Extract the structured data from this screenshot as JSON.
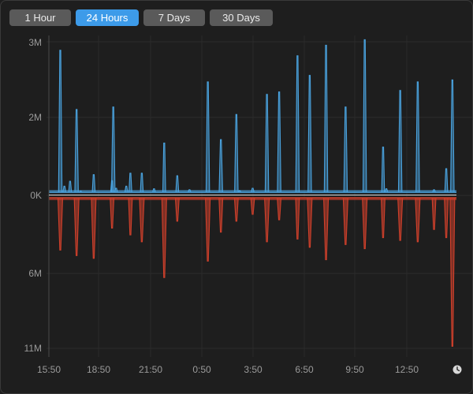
{
  "tabs": [
    {
      "label": "1 Hour",
      "active": false
    },
    {
      "label": "24 Hours",
      "active": true
    },
    {
      "label": "7 Days",
      "active": false
    },
    {
      "label": "30 Days",
      "active": false
    }
  ],
  "icons": {
    "clock": "clock-icon"
  },
  "colors": {
    "upload": "#4aa3df",
    "download": "#d0402b",
    "active_tab": "#3d9be9"
  },
  "chart_data": {
    "type": "area",
    "title": "",
    "y_ticks_top": [
      "3M",
      "2M",
      "0K"
    ],
    "y_ticks_bottom": [
      "6M",
      "11M"
    ],
    "x_ticks": [
      "15:50",
      "18:50",
      "21:50",
      "0:50",
      "3:50",
      "6:50",
      "9:50",
      "12:50"
    ],
    "ylim_top": [
      0,
      3.0
    ],
    "ylim_bottom": [
      0,
      11.0
    ],
    "grid": true,
    "series": [
      {
        "direction": "up",
        "spikes": [
          {
            "t": 0.028,
            "v": 2.83
          },
          {
            "t": 0.038,
            "v": 0.12
          },
          {
            "t": 0.052,
            "v": 0.22
          },
          {
            "t": 0.068,
            "v": 1.65
          },
          {
            "t": 0.078,
            "v": 0.02
          },
          {
            "t": 0.11,
            "v": 0.35
          },
          {
            "t": 0.155,
            "v": 0.23
          },
          {
            "t": 0.158,
            "v": 1.7
          },
          {
            "t": 0.165,
            "v": 0.08
          },
          {
            "t": 0.19,
            "v": 0.12
          },
          {
            "t": 0.2,
            "v": 0.38
          },
          {
            "t": 0.228,
            "v": 0.38
          },
          {
            "t": 0.258,
            "v": 0.07
          },
          {
            "t": 0.283,
            "v": 0.98
          },
          {
            "t": 0.315,
            "v": 0.33
          },
          {
            "t": 0.345,
            "v": 0.05
          },
          {
            "t": 0.39,
            "v": 2.2
          },
          {
            "t": 0.422,
            "v": 1.05
          },
          {
            "t": 0.46,
            "v": 1.55
          },
          {
            "t": 0.468,
            "v": 0.03
          },
          {
            "t": 0.5,
            "v": 0.08
          },
          {
            "t": 0.535,
            "v": 1.95
          },
          {
            "t": 0.565,
            "v": 2.0
          },
          {
            "t": 0.61,
            "v": 2.72
          },
          {
            "t": 0.64,
            "v": 2.33
          },
          {
            "t": 0.68,
            "v": 2.93
          },
          {
            "t": 0.728,
            "v": 1.7
          },
          {
            "t": 0.775,
            "v": 3.04
          },
          {
            "t": 0.82,
            "v": 0.9
          },
          {
            "t": 0.828,
            "v": 0.07
          },
          {
            "t": 0.862,
            "v": 2.03
          },
          {
            "t": 0.905,
            "v": 2.2
          },
          {
            "t": 0.945,
            "v": 0.05
          },
          {
            "t": 0.975,
            "v": 0.47
          },
          {
            "t": 0.99,
            "v": 2.24
          }
        ]
      },
      {
        "direction": "down",
        "spikes": [
          {
            "t": 0.028,
            "v": 3.8
          },
          {
            "t": 0.068,
            "v": 4.2
          },
          {
            "t": 0.11,
            "v": 4.4
          },
          {
            "t": 0.155,
            "v": 2.2
          },
          {
            "t": 0.2,
            "v": 2.7
          },
          {
            "t": 0.228,
            "v": 3.2
          },
          {
            "t": 0.283,
            "v": 5.8
          },
          {
            "t": 0.315,
            "v": 1.7
          },
          {
            "t": 0.39,
            "v": 4.6
          },
          {
            "t": 0.422,
            "v": 2.5
          },
          {
            "t": 0.46,
            "v": 1.7
          },
          {
            "t": 0.5,
            "v": 1.2
          },
          {
            "t": 0.535,
            "v": 3.2
          },
          {
            "t": 0.565,
            "v": 1.6
          },
          {
            "t": 0.61,
            "v": 3.0
          },
          {
            "t": 0.64,
            "v": 3.6
          },
          {
            "t": 0.68,
            "v": 4.5
          },
          {
            "t": 0.728,
            "v": 3.4
          },
          {
            "t": 0.775,
            "v": 3.7
          },
          {
            "t": 0.82,
            "v": 2.9
          },
          {
            "t": 0.862,
            "v": 3.1
          },
          {
            "t": 0.905,
            "v": 3.2
          },
          {
            "t": 0.945,
            "v": 2.3
          },
          {
            "t": 0.975,
            "v": 2.9
          },
          {
            "t": 0.99,
            "v": 10.8
          }
        ]
      }
    ]
  }
}
